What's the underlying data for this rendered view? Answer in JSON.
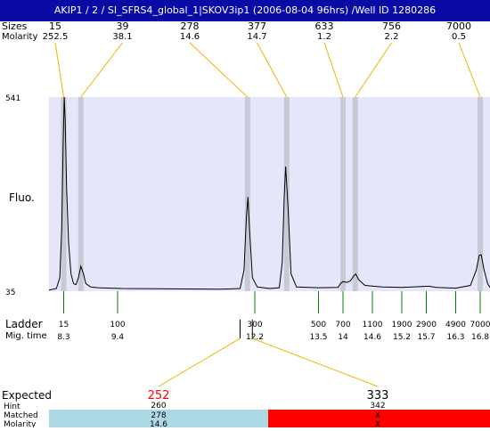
{
  "header": {
    "title": "AKIP1 / 2 / SI_SFRS4_global_1|SKOV3ip1 (2006-08-04 96hrs) /Well ID 1280286"
  },
  "labels": {
    "sizes": "Sizes",
    "molarity": "Molarity",
    "fluo": "Fluo.",
    "ladder": "Ladder",
    "mig_time": "Mig. time",
    "expected": "Expected",
    "hint": "Hint",
    "matched": "Matched",
    "molarity_bottom": "Molarity"
  },
  "colors": {
    "header_bg": "#0a0aa6",
    "plot_bg": "#e6e6fa",
    "peak_band": "#c9c9d6",
    "connector": "#f0b400",
    "ladder_tick": "#008000",
    "matched_ok": "#add8e6",
    "matched_bad": "#ff0000",
    "expected_flag": "#ff0000"
  },
  "chart_data": {
    "type": "line",
    "title": "",
    "ylabel": "Fluo.",
    "xlabel": "Mig. time",
    "ylim": [
      35,
      541
    ],
    "y_ticks": [
      541,
      35
    ],
    "x_range": [
      8.0,
      17.0
    ],
    "peaks": [
      {
        "size": "15",
        "molarity": "252.5",
        "time": 8.3,
        "height": 541
      },
      {
        "size": "39",
        "molarity": "38.1",
        "time": 8.65,
        "height": 100
      },
      {
        "size": "278",
        "molarity": "14.6",
        "time": 12.05,
        "height": 280
      },
      {
        "size": "377",
        "molarity": "14.7",
        "time": 12.85,
        "height": 360
      },
      {
        "size": "633",
        "molarity": "1.2",
        "time": 14.0,
        "height": 60
      },
      {
        "size": "756",
        "molarity": "2.2",
        "time": 14.25,
        "height": 80
      },
      {
        "size": "7000",
        "molarity": "0.5",
        "time": 16.8,
        "height": 130
      }
    ],
    "series": [
      {
        "name": "",
        "points": [
          [
            8.0,
            38
          ],
          [
            8.15,
            42
          ],
          [
            8.22,
            70
          ],
          [
            8.26,
            200
          ],
          [
            8.29,
            420
          ],
          [
            8.31,
            541
          ],
          [
            8.33,
            480
          ],
          [
            8.36,
            300
          ],
          [
            8.4,
            160
          ],
          [
            8.45,
            80
          ],
          [
            8.5,
            55
          ],
          [
            8.55,
            52
          ],
          [
            8.6,
            70
          ],
          [
            8.65,
            100
          ],
          [
            8.7,
            82
          ],
          [
            8.75,
            55
          ],
          [
            8.85,
            46
          ],
          [
            9.0,
            44
          ],
          [
            9.5,
            42
          ],
          [
            10.5,
            41
          ],
          [
            11.5,
            40
          ],
          [
            11.9,
            42
          ],
          [
            11.98,
            90
          ],
          [
            12.03,
            230
          ],
          [
            12.06,
            280
          ],
          [
            12.1,
            180
          ],
          [
            12.15,
            70
          ],
          [
            12.25,
            46
          ],
          [
            12.5,
            42
          ],
          [
            12.7,
            44
          ],
          [
            12.76,
            110
          ],
          [
            12.8,
            280
          ],
          [
            12.83,
            360
          ],
          [
            12.88,
            250
          ],
          [
            12.94,
            80
          ],
          [
            13.05,
            46
          ],
          [
            13.5,
            44
          ],
          [
            13.9,
            45
          ],
          [
            13.95,
            55
          ],
          [
            14.0,
            60
          ],
          [
            14.08,
            58
          ],
          [
            14.15,
            62
          ],
          [
            14.22,
            75
          ],
          [
            14.26,
            80
          ],
          [
            14.32,
            65
          ],
          [
            14.45,
            50
          ],
          [
            14.8,
            46
          ],
          [
            15.2,
            45
          ],
          [
            15.6,
            47
          ],
          [
            15.75,
            48
          ],
          [
            15.9,
            45
          ],
          [
            16.3,
            43
          ],
          [
            16.6,
            50
          ],
          [
            16.72,
            90
          ],
          [
            16.78,
            128
          ],
          [
            16.82,
            130
          ],
          [
            16.88,
            90
          ],
          [
            16.95,
            55
          ],
          [
            17.0,
            45
          ]
        ]
      }
    ],
    "ladder": [
      {
        "size": "15",
        "time": "8.3",
        "t": 8.3
      },
      {
        "size": "100",
        "time": "9.4",
        "t": 9.4
      },
      {
        "size": "300",
        "time": "12.2",
        "t": 12.2
      },
      {
        "size": "500",
        "time": "13.5",
        "t": 13.5
      },
      {
        "size": "700",
        "time": "14",
        "t": 14.0
      },
      {
        "size": "1100",
        "time": "14.6",
        "t": 14.6
      },
      {
        "size": "1900",
        "time": "15.2",
        "t": 15.2
      },
      {
        "size": "2900",
        "time": "15.7",
        "t": 15.7
      },
      {
        "size": "4900",
        "time": "16.3",
        "t": 16.3
      },
      {
        "size": "7000",
        "time": "16.8",
        "t": 16.8
      }
    ],
    "markers": [
      {
        "t": 11.9,
        "expected": "252",
        "hint": "260",
        "matched": "278",
        "molarity": "14.6",
        "flagged": true,
        "status": "ok"
      },
      {
        "t": 12.15,
        "expected": "333",
        "hint": "342",
        "matched": "X",
        "molarity": "X",
        "flagged": false,
        "status": "bad"
      }
    ]
  }
}
